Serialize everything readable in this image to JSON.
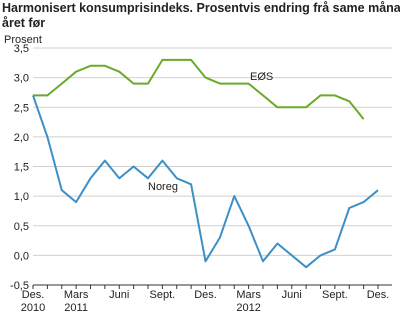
{
  "chart_data": {
    "type": "line",
    "title": [
      "Harmonisert konsumprisindeks. Prosentvis endring frå same månad",
      "året før"
    ],
    "y_label": "Prosent",
    "categories": [
      "Des.",
      null,
      null,
      "Mars",
      null,
      null,
      "Juni",
      null,
      null,
      "Sept.",
      null,
      null,
      "Des.",
      null,
      null,
      "Mars",
      null,
      null,
      "Juni",
      null,
      null,
      "Sept.",
      null,
      null,
      "Des."
    ],
    "category_years": [
      "2010",
      null,
      null,
      "2011",
      null,
      null,
      null,
      null,
      null,
      null,
      null,
      null,
      null,
      null,
      null,
      "2012",
      null,
      null,
      null,
      null,
      null,
      null,
      null,
      null,
      null
    ],
    "series": [
      {
        "name": "EØS",
        "color": "#6aaa2a",
        "values": [
          2.7,
          2.7,
          2.9,
          3.1,
          3.2,
          3.2,
          3.1,
          2.9,
          2.9,
          3.3,
          3.3,
          3.3,
          3.0,
          2.9,
          2.9,
          2.9,
          2.7,
          2.5,
          2.5,
          2.5,
          2.7,
          2.7,
          2.6,
          2.3,
          null
        ]
      },
      {
        "name": "Noreg",
        "color": "#3d8fc6",
        "values": [
          2.7,
          2.0,
          1.1,
          0.9,
          1.3,
          1.6,
          1.3,
          1.5,
          1.3,
          1.6,
          1.3,
          1.2,
          -0.1,
          0.3,
          1.0,
          0.5,
          -0.1,
          0.2,
          0.0,
          -0.2,
          0.0,
          0.1,
          0.8,
          0.9,
          1.1
        ]
      }
    ],
    "ylim": [
      -0.5,
      3.5
    ],
    "yticks": [
      {
        "value": -0.5,
        "label": "-0,5"
      },
      {
        "value": 0,
        "label": "0,0"
      },
      {
        "value": 0.5,
        "label": "0,5"
      },
      {
        "value": 1,
        "label": "1,0"
      },
      {
        "value": 1.5,
        "label": "1,5"
      },
      {
        "value": 2,
        "label": "2,0"
      },
      {
        "value": 2.5,
        "label": "2,5"
      },
      {
        "value": 3,
        "label": "3,0"
      },
      {
        "value": 3.5,
        "label": "3,5"
      }
    ],
    "grid": true
  }
}
